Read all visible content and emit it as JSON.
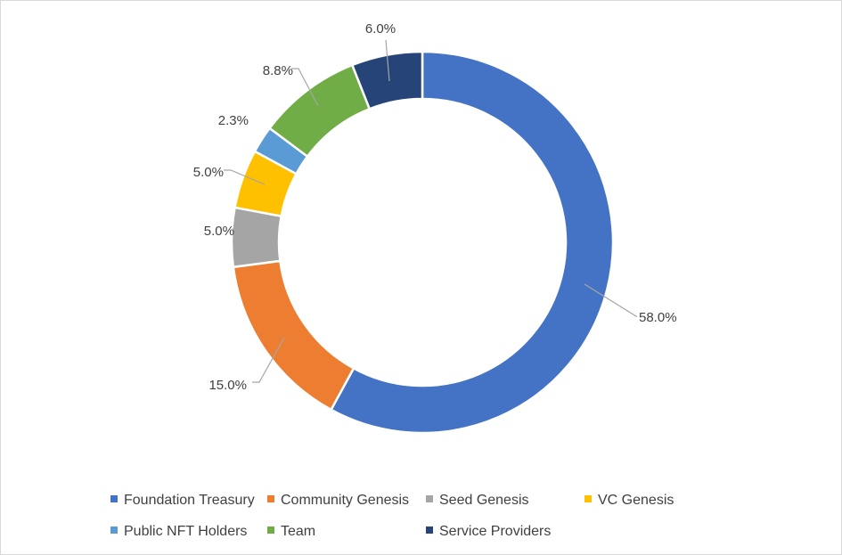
{
  "chart_data": {
    "type": "pie",
    "variant": "donut",
    "title": "",
    "series": [
      {
        "values": [
          58.0,
          15.0,
          5.0,
          5.0,
          2.3,
          8.8,
          6.0
        ],
        "labels": [
          "58.0%",
          "15.0%",
          "5.0%",
          "5.0%",
          "2.3%",
          "8.8%",
          "6.0%"
        ]
      }
    ],
    "categories": [
      "Foundation Treasury",
      "Community Genesis",
      "Seed Genesis",
      "VC Genesis",
      "Public NFT Holders",
      "Team",
      "Service Providers"
    ],
    "colors": [
      "#4472c4",
      "#ed7d31",
      "#a5a5a5",
      "#ffc000",
      "#5b9bd5",
      "#70ad47",
      "#264478"
    ],
    "start": "12 o'clock",
    "direction": "clockwise",
    "legend_position": "bottom"
  }
}
